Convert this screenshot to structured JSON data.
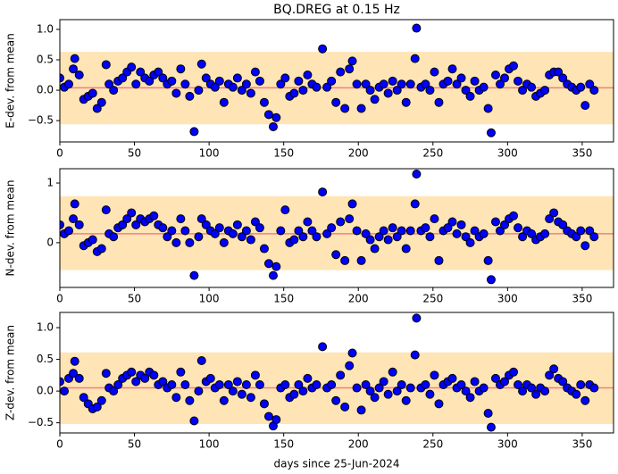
{
  "chart_data": [
    {
      "type": "scatter",
      "title": "BQ.DREG at 0.15 Hz",
      "ylabel": "E-dev. from mean",
      "x": [
        0,
        3,
        6,
        9,
        10,
        13,
        16,
        19,
        22,
        25,
        28,
        31,
        33,
        36,
        39,
        42,
        45,
        48,
        51,
        54,
        57,
        60,
        63,
        66,
        69,
        72,
        75,
        78,
        81,
        84,
        87,
        90,
        93,
        95,
        98,
        101,
        104,
        107,
        110,
        113,
        116,
        119,
        122,
        125,
        128,
        131,
        134,
        137,
        140,
        143,
        145,
        148,
        151,
        154,
        157,
        160,
        163,
        166,
        169,
        172,
        176,
        179,
        182,
        185,
        188,
        191,
        194,
        196,
        199,
        202,
        205,
        208,
        211,
        214,
        217,
        220,
        223,
        226,
        229,
        232,
        235,
        238,
        239,
        242,
        245,
        248,
        251,
        254,
        257,
        260,
        263,
        266,
        269,
        272,
        275,
        278,
        281,
        284,
        287,
        289,
        292,
        295,
        298,
        301,
        304,
        307,
        310,
        313,
        316,
        319,
        322,
        325,
        328,
        331,
        334,
        337,
        340,
        343,
        346,
        349,
        352,
        355,
        358
      ],
      "values": [
        0.2,
        0.05,
        0.1,
        0.35,
        0.52,
        0.25,
        -0.15,
        -0.1,
        -0.05,
        -0.3,
        -0.2,
        0.42,
        0.1,
        0.0,
        0.15,
        0.2,
        0.3,
        0.38,
        0.1,
        0.3,
        0.2,
        0.15,
        0.25,
        0.3,
        0.2,
        0.1,
        0.15,
        -0.05,
        0.35,
        0.1,
        -0.1,
        -0.68,
        0.0,
        0.43,
        0.2,
        0.1,
        0.05,
        0.15,
        -0.2,
        0.1,
        0.05,
        0.2,
        0.0,
        0.1,
        -0.05,
        0.3,
        0.15,
        -0.2,
        -0.4,
        -0.6,
        -0.45,
        0.1,
        0.2,
        -0.1,
        -0.05,
        0.15,
        0.0,
        0.25,
        0.1,
        0.05,
        0.68,
        0.05,
        0.15,
        -0.2,
        0.3,
        -0.3,
        0.35,
        0.48,
        0.1,
        -0.3,
        0.1,
        0.0,
        -0.15,
        0.05,
        0.1,
        -0.05,
        0.15,
        0.0,
        0.1,
        -0.2,
        0.1,
        0.52,
        1.02,
        0.05,
        0.1,
        0.0,
        0.3,
        -0.2,
        0.1,
        0.15,
        0.35,
        0.1,
        0.2,
        0.0,
        -0.1,
        0.15,
        0.0,
        0.05,
        -0.3,
        -0.7,
        0.25,
        0.1,
        0.2,
        0.35,
        0.4,
        0.15,
        0.0,
        0.1,
        0.05,
        -0.1,
        -0.05,
        0.0,
        0.25,
        0.3,
        0.3,
        0.2,
        0.1,
        0.05,
        0.0,
        0.05,
        -0.25,
        0.1,
        0.0
      ],
      "xlim": [
        0,
        371
      ],
      "ylim": [
        -0.85,
        1.16
      ],
      "xticks": [
        0,
        50,
        100,
        150,
        200,
        250,
        300,
        350
      ],
      "yticks": [
        {
          "value": -0.5,
          "label": "−0.5"
        },
        {
          "value": 0,
          "label": "0.0"
        },
        {
          "value": 0.5,
          "label": "0.5"
        },
        {
          "value": 1,
          "label": "1.0"
        }
      ],
      "band": [
        -0.56,
        0.63
      ],
      "mean_line": 0.04,
      "color": "#0000ff",
      "band_color": "#ffe4b5",
      "line_color": "#f08080"
    },
    {
      "type": "scatter",
      "ylabel": "N-dev. from mean",
      "x": [
        0,
        3,
        6,
        9,
        10,
        13,
        16,
        19,
        22,
        25,
        28,
        31,
        33,
        36,
        39,
        42,
        45,
        48,
        51,
        54,
        57,
        60,
        63,
        66,
        69,
        72,
        75,
        78,
        81,
        84,
        87,
        90,
        93,
        95,
        98,
        101,
        104,
        107,
        110,
        113,
        116,
        119,
        122,
        125,
        128,
        131,
        134,
        137,
        140,
        143,
        145,
        148,
        151,
        154,
        157,
        160,
        163,
        166,
        169,
        172,
        176,
        179,
        182,
        185,
        188,
        191,
        194,
        196,
        199,
        202,
        205,
        208,
        211,
        214,
        217,
        220,
        223,
        226,
        229,
        232,
        235,
        238,
        239,
        242,
        245,
        248,
        251,
        254,
        257,
        260,
        263,
        266,
        269,
        272,
        275,
        278,
        281,
        284,
        287,
        289,
        292,
        295,
        298,
        301,
        304,
        307,
        310,
        313,
        316,
        319,
        322,
        325,
        328,
        331,
        334,
        337,
        340,
        343,
        346,
        349,
        352,
        355,
        358
      ],
      "values": [
        0.3,
        0.15,
        0.2,
        0.4,
        0.65,
        0.3,
        -0.05,
        0.0,
        0.05,
        -0.15,
        -0.1,
        0.55,
        0.15,
        0.1,
        0.25,
        0.3,
        0.4,
        0.5,
        0.3,
        0.4,
        0.35,
        0.4,
        0.45,
        0.3,
        0.25,
        0.1,
        0.2,
        0.0,
        0.4,
        0.2,
        0.0,
        -0.55,
        0.1,
        0.4,
        0.3,
        0.2,
        0.15,
        0.25,
        0.0,
        0.2,
        0.15,
        0.3,
        0.1,
        0.2,
        0.05,
        0.35,
        0.25,
        -0.1,
        -0.35,
        -0.55,
        -0.4,
        0.2,
        0.55,
        0.0,
        0.05,
        0.2,
        0.1,
        0.35,
        0.2,
        0.1,
        0.85,
        0.15,
        0.25,
        -0.2,
        0.35,
        -0.3,
        0.4,
        0.65,
        0.2,
        -0.3,
        0.15,
        0.05,
        -0.1,
        0.1,
        0.2,
        0.05,
        0.25,
        0.1,
        0.2,
        -0.1,
        0.2,
        0.65,
        1.15,
        0.2,
        0.25,
        0.1,
        0.4,
        -0.3,
        0.2,
        0.25,
        0.35,
        0.15,
        0.3,
        0.1,
        0.0,
        0.2,
        0.1,
        0.15,
        -0.3,
        -0.62,
        0.35,
        0.2,
        0.3,
        0.4,
        0.45,
        0.25,
        0.1,
        0.2,
        0.15,
        0.05,
        0.1,
        0.15,
        0.4,
        0.5,
        0.35,
        0.3,
        0.2,
        0.15,
        0.1,
        0.2,
        -0.05,
        0.2,
        0.1
      ],
      "xlim": [
        0,
        371
      ],
      "ylim": [
        -0.75,
        1.24
      ],
      "xticks": [
        0,
        50,
        100,
        150,
        200,
        250,
        300,
        350
      ],
      "yticks": [
        0,
        1
      ],
      "band": [
        -0.46,
        0.78
      ],
      "mean_line": 0.15,
      "color": "#0000ff",
      "band_color": "#ffe4b5",
      "line_color": "#f08080"
    },
    {
      "type": "scatter",
      "ylabel": "Z-dev. from mean",
      "xlabel": "days since 25-Jun-2024",
      "x": [
        0,
        3,
        6,
        9,
        10,
        13,
        16,
        19,
        22,
        25,
        28,
        31,
        33,
        36,
        39,
        42,
        45,
        48,
        51,
        54,
        57,
        60,
        63,
        66,
        69,
        72,
        75,
        78,
        81,
        84,
        87,
        90,
        93,
        95,
        98,
        101,
        104,
        107,
        110,
        113,
        116,
        119,
        122,
        125,
        128,
        131,
        134,
        137,
        140,
        143,
        145,
        148,
        151,
        154,
        157,
        160,
        163,
        166,
        169,
        172,
        176,
        179,
        182,
        185,
        188,
        191,
        194,
        196,
        199,
        202,
        205,
        208,
        211,
        214,
        217,
        220,
        223,
        226,
        229,
        232,
        235,
        238,
        239,
        242,
        245,
        248,
        251,
        254,
        257,
        260,
        263,
        266,
        269,
        272,
        275,
        278,
        281,
        284,
        287,
        289,
        292,
        295,
        298,
        301,
        304,
        307,
        310,
        313,
        316,
        319,
        322,
        325,
        328,
        331,
        334,
        337,
        340,
        343,
        346,
        349,
        352,
        355,
        358
      ],
      "values": [
        0.15,
        0.0,
        0.2,
        0.28,
        0.47,
        0.2,
        -0.1,
        -0.2,
        -0.28,
        -0.25,
        -0.15,
        0.28,
        0.05,
        0.0,
        0.1,
        0.2,
        0.25,
        0.3,
        0.15,
        0.25,
        0.2,
        0.3,
        0.25,
        0.1,
        0.15,
        0.05,
        0.1,
        -0.1,
        0.3,
        0.1,
        -0.15,
        -0.47,
        0.0,
        0.48,
        0.15,
        0.2,
        0.05,
        0.1,
        -0.15,
        0.1,
        0.0,
        0.15,
        -0.05,
        0.1,
        -0.1,
        0.25,
        0.1,
        -0.2,
        -0.4,
        -0.55,
        -0.45,
        0.05,
        0.1,
        -0.1,
        -0.05,
        0.1,
        0.0,
        0.2,
        0.05,
        0.1,
        0.7,
        0.05,
        0.1,
        -0.15,
        0.25,
        -0.25,
        0.4,
        0.6,
        0.05,
        -0.3,
        0.1,
        0.0,
        -0.1,
        0.05,
        0.15,
        -0.05,
        0.3,
        0.0,
        0.1,
        -0.15,
        0.05,
        0.57,
        1.15,
        0.05,
        0.1,
        -0.05,
        0.25,
        -0.2,
        0.1,
        0.15,
        0.2,
        0.05,
        0.1,
        0.0,
        -0.1,
        0.15,
        0.0,
        0.05,
        -0.35,
        -0.57,
        0.2,
        0.1,
        0.15,
        0.25,
        0.3,
        0.1,
        0.0,
        0.1,
        0.05,
        -0.05,
        0.05,
        0.0,
        0.25,
        0.35,
        0.2,
        0.15,
        0.05,
        0.0,
        -0.05,
        0.1,
        -0.15,
        0.1,
        0.05
      ],
      "xlim": [
        0,
        371
      ],
      "ylim": [
        -0.66,
        1.24
      ],
      "xticks": [
        0,
        50,
        100,
        150,
        200,
        250,
        300,
        350
      ],
      "yticks": [
        {
          "value": -0.5,
          "label": "−0.5"
        },
        {
          "value": 0,
          "label": "0.0"
        },
        {
          "value": 0.5,
          "label": "0.5"
        },
        {
          "value": 1,
          "label": "1.0"
        }
      ],
      "band": [
        -0.52,
        0.61
      ],
      "mean_line": 0.05,
      "color": "#0000ff",
      "band_color": "#ffe4b5",
      "line_color": "#f08080"
    }
  ]
}
